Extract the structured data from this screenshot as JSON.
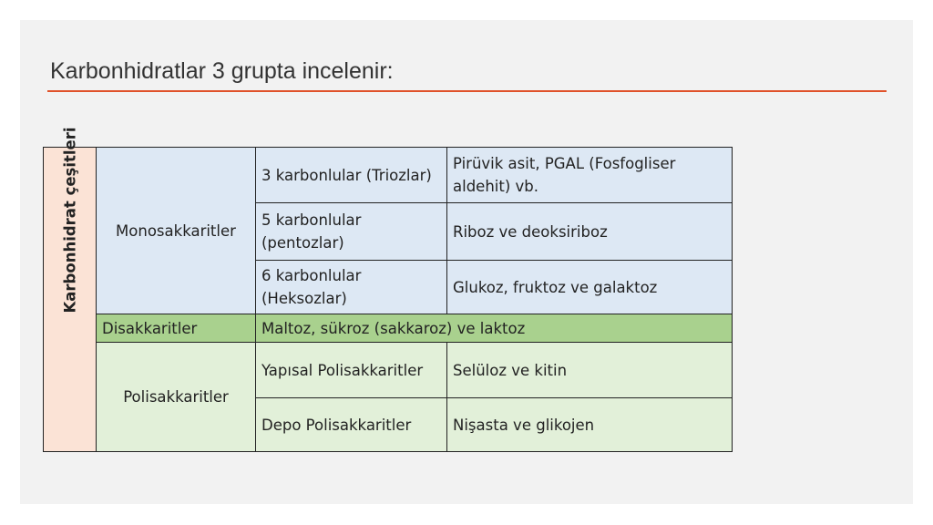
{
  "title": "Karbonhidratlar 3 grupta incelenir:",
  "table": {
    "side_label": "Karbonhidrat çeşitleri",
    "mono": {
      "label": "Monosakkaritler",
      "rows": [
        {
          "type": "3 karbonlular (Triozlar)",
          "examples": "Pirüvik asit, PGAL (Fosfogliser aldehit) vb."
        },
        {
          "type": "5 karbonlular (pentozlar)",
          "examples": "Riboz ve deoksiriboz"
        },
        {
          "type": "6 karbonlular (Heksozlar)",
          "examples": "Glukoz, fruktoz ve galaktoz"
        }
      ]
    },
    "di": {
      "label": "Disakkaritler",
      "examples": "Maltoz, sükroz (sakkaroz) ve laktoz"
    },
    "poli": {
      "label": "Polisakkaritler",
      "rows": [
        {
          "type": "Yapısal Polisakkaritler",
          "examples": "Selüloz ve kitin"
        },
        {
          "type": "Depo Polisakkaritler",
          "examples": "Nişasta ve glikojen"
        }
      ]
    }
  },
  "colors": {
    "accent_rule": "#e0522a",
    "side": "#fbe3d6",
    "mono": "#dde8f4",
    "di": "#a9d18e",
    "poli": "#e2f0d9"
  }
}
